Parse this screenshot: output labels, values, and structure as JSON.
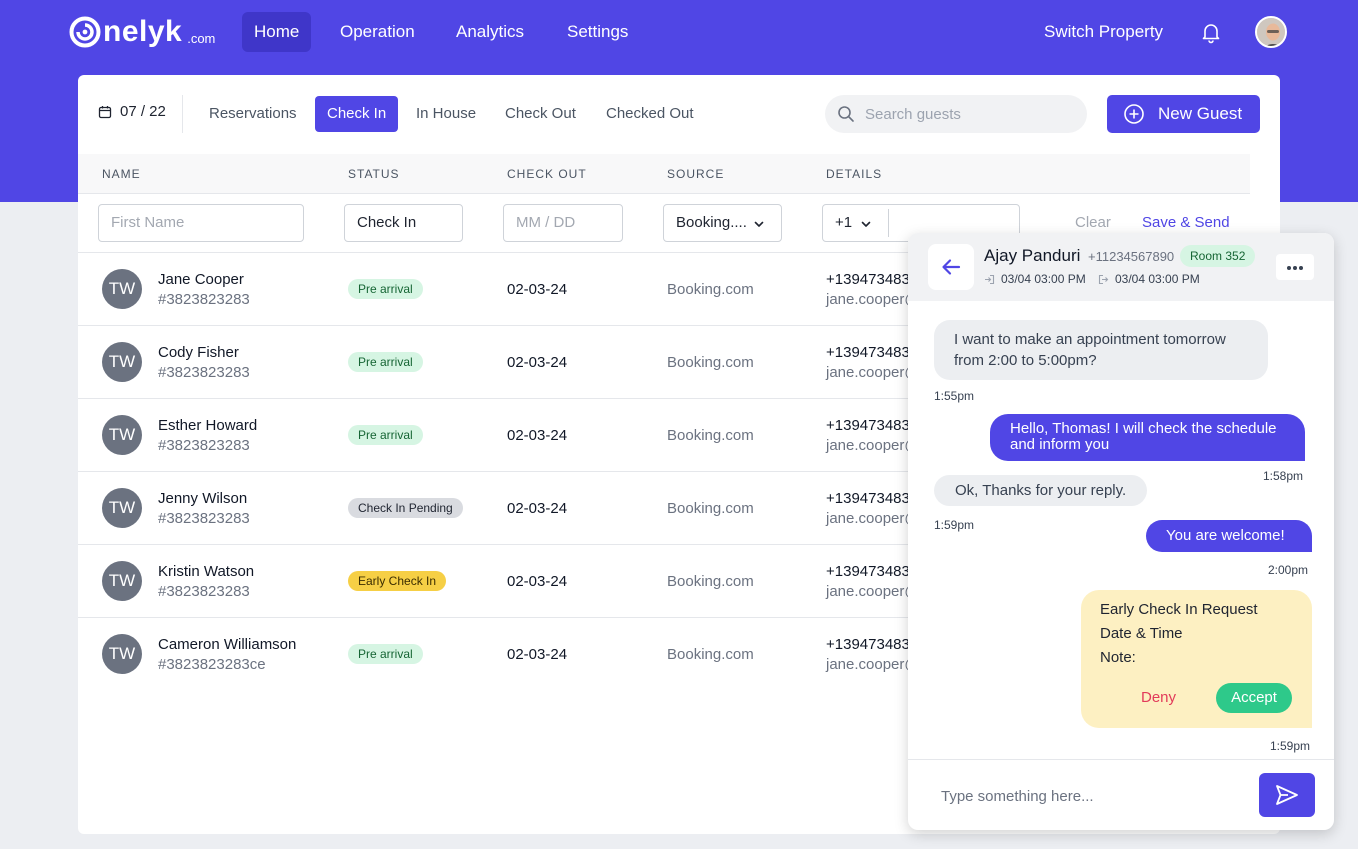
{
  "nav": {
    "logo_word": "nelyk",
    "logo_domain": ".com",
    "items": [
      "Home",
      "Operation",
      "Analytics",
      "Settings"
    ],
    "active": "Home",
    "switch_property": "Switch Property"
  },
  "toolbar": {
    "date": "07 / 22",
    "tabs": [
      "Reservations",
      "Check In",
      "In House",
      "Check Out",
      "Checked Out"
    ],
    "active_tab": "Check In",
    "search_placeholder": "Search guests",
    "new_guest": "New Guest"
  },
  "table": {
    "headers": [
      "NAME",
      "STATUS",
      "CHECK OUT",
      "SOURCE",
      "DETAILS"
    ],
    "filters": {
      "first_name_placeholder": "First Name",
      "status": "Check In",
      "date_placeholder": "MM / DD",
      "source": "Booking....",
      "country_code": "+1",
      "clear": "Clear",
      "save_send": "Save & Send"
    },
    "rows": [
      {
        "initials": "TW",
        "name": "Jane Cooper",
        "id": "#3823823283",
        "status": "Pre arrival",
        "status_kind": "green",
        "checkout": "02-03-24",
        "source": "Booking.com",
        "phone": "+139473483",
        "email": "jane.cooper@"
      },
      {
        "initials": "TW",
        "name": "Cody Fisher",
        "id": "#3823823283",
        "status": "Pre arrival",
        "status_kind": "green",
        "checkout": "02-03-24",
        "source": "Booking.com",
        "phone": "+139473483",
        "email": "jane.cooper@"
      },
      {
        "initials": "TW",
        "name": "Esther Howard",
        "id": "#3823823283",
        "status": "Pre arrival",
        "status_kind": "green",
        "checkout": "02-03-24",
        "source": "Booking.com",
        "phone": "+139473483",
        "email": "jane.cooper@"
      },
      {
        "initials": "TW",
        "name": "Jenny Wilson",
        "id": "#3823823283",
        "status": "Check In Pending",
        "status_kind": "gray",
        "checkout": "02-03-24",
        "source": "Booking.com",
        "phone": "+139473483",
        "email": "jane.cooper@"
      },
      {
        "initials": "TW",
        "name": "Kristin Watson",
        "id": "#3823823283",
        "status": "Early Check In",
        "status_kind": "yellow",
        "checkout": "02-03-24",
        "source": "Booking.com",
        "phone": "+139473483",
        "email": "jane.cooper@"
      },
      {
        "initials": "TW",
        "name": "Cameron Williamson",
        "id": "#3823823283ce",
        "status": "Pre arrival",
        "status_kind": "green",
        "checkout": "02-03-24",
        "source": "Booking.com",
        "phone": "+139473483",
        "email": "jane.cooper@"
      }
    ]
  },
  "chat": {
    "guest_name": "Ajay Panduri",
    "guest_phone": "+11234567890",
    "room": "Room 352",
    "checkin": "03/04 03:00 PM",
    "checkout": "03/04 03:00 PM",
    "messages": [
      {
        "dir": "in",
        "text1": "I want to make an appointment tomorrow",
        "text2": "from 2:00 to 5:00pm?",
        "time": "1:55pm"
      },
      {
        "dir": "out",
        "text1": "Hello, Thomas! I will check the schedule",
        "text2": "and inform you",
        "time": "1:58pm"
      },
      {
        "dir": "in",
        "text1": "Ok, Thanks for your reply.",
        "time": "1:59pm"
      },
      {
        "dir": "out",
        "text1": "You are welcome!",
        "time": "2:00pm"
      }
    ],
    "request": {
      "title": "Early Check In Request",
      "line2": "Date & Time",
      "line3": "Note:",
      "deny": "Deny",
      "accept": "Accept",
      "time": "1:59pm"
    },
    "input_placeholder": "Type something here..."
  },
  "colors": {
    "brand": "#5046e5",
    "status_green_bg": "#d6f5e3",
    "status_yellow_bg": "#f6cf45",
    "accept": "#2ec98a",
    "deny": "#e23b5a"
  }
}
